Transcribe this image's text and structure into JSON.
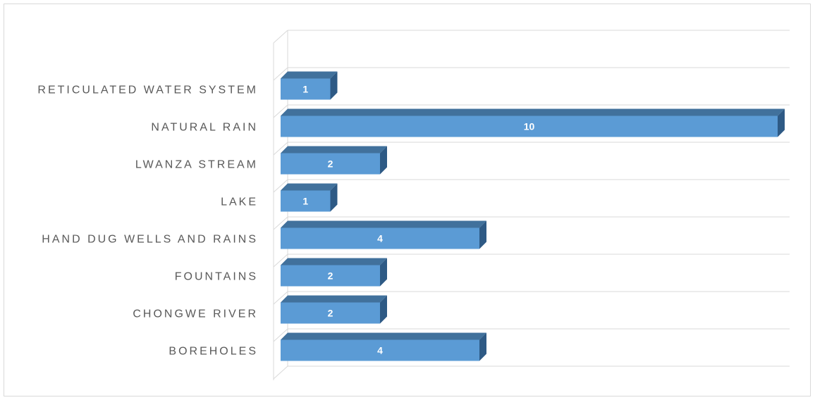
{
  "chart_data": {
    "type": "bar",
    "orientation": "horizontal",
    "style": "3d",
    "categories": [
      "RETICULATED WATER SYSTEM",
      "NATURAL RAIN",
      "LWANZA STREAM",
      "LAKE",
      "HAND DUG WELLS AND RAINS",
      "FOUNTAINS",
      "CHONGWE RIVER",
      "BOREHOLES"
    ],
    "values": [
      1,
      10,
      2,
      1,
      4,
      2,
      2,
      4
    ],
    "data_labels": [
      "1",
      "10",
      "2",
      "1",
      "4",
      "2",
      "2",
      "4"
    ],
    "xlim": [
      0,
      10
    ],
    "grid": true,
    "legend": "none",
    "colors": {
      "bar_front": "#5b9bd5",
      "bar_top": "#41719c",
      "bar_side": "#2e5a85",
      "grid": "#d9d9d9",
      "text": "#595959"
    }
  }
}
